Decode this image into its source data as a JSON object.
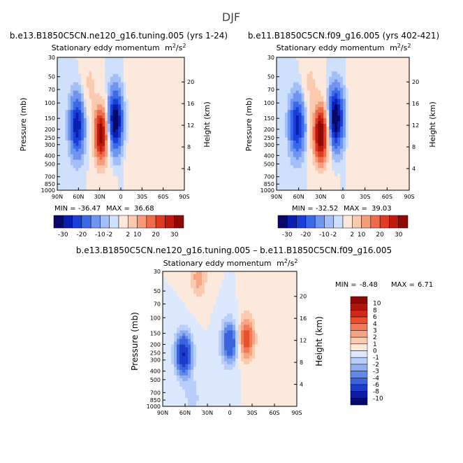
{
  "page_title": "DJF",
  "chart_data": [
    {
      "type": "heatmap",
      "title": "b.e13.B1850C5CN.ne120_g16.tuning.005 (yrs 1-24)",
      "subtitle": "Stationary eddy momentum",
      "units_base": "m",
      "units_sup1": "2",
      "units_mid": "/s",
      "units_sup2": "2",
      "ylabel": "Pressure (mb)",
      "ylabel_right": "Height (km)",
      "x_ticks": [
        "90N",
        "60N",
        "30N",
        "0",
        "30S",
        "60S",
        "90S"
      ],
      "y_ticks": [
        "30",
        "50",
        "70",
        "100",
        "150",
        "200",
        "250",
        "300",
        "400",
        "500",
        "700",
        "850",
        "1000"
      ],
      "y_right_ticks": [
        "20",
        "16",
        "12",
        "8",
        "4"
      ],
      "ylim": [
        1000,
        30
      ],
      "xlim": [
        "90N",
        "90S"
      ],
      "min_label": "MIN =",
      "min_value": "-36.47",
      "max_label": "MAX =",
      "max_value": "36.68",
      "color_levels": [
        "-30",
        "-20",
        "-10",
        "-2",
        "2",
        "10",
        "20",
        "30"
      ],
      "features": [
        {
          "lat": 62,
          "p": 180,
          "value": -24
        },
        {
          "lat": 28,
          "p": 230,
          "value": 34
        },
        {
          "lat": 8,
          "p": 160,
          "value": -30
        },
        {
          "lat": 44,
          "p": 60,
          "value": 6
        },
        {
          "lat": -42,
          "p": 320,
          "value": 1
        }
      ]
    },
    {
      "type": "heatmap",
      "title": "b.e11.B1850C5CN.f09_g16.005 (yrs 402-421)",
      "subtitle": "Stationary eddy momentum",
      "units_base": "m",
      "units_sup1": "2",
      "units_mid": "/s",
      "units_sup2": "2",
      "ylabel": "Pressure (mb)",
      "ylabel_right": "Height (km)",
      "x_ticks": [
        "90N",
        "60N",
        "30N",
        "0",
        "30S",
        "60S",
        "90S"
      ],
      "y_ticks": [
        "30",
        "50",
        "70",
        "100",
        "150",
        "200",
        "250",
        "300",
        "400",
        "500",
        "700",
        "850",
        "1000"
      ],
      "y_right_ticks": [
        "20",
        "16",
        "12",
        "8",
        "4"
      ],
      "ylim": [
        1000,
        30
      ],
      "xlim": [
        "90N",
        "90S"
      ],
      "min_label": "MIN =",
      "min_value": "-32.52",
      "max_label": "MAX =",
      "max_value": "39.03",
      "color_levels": [
        "-30",
        "-20",
        "-10",
        "-2",
        "2",
        "10",
        "20",
        "30"
      ],
      "features": [
        {
          "lat": 62,
          "p": 180,
          "value": -22
        },
        {
          "lat": 30,
          "p": 230,
          "value": 38
        },
        {
          "lat": 10,
          "p": 150,
          "value": -31
        },
        {
          "lat": 44,
          "p": 60,
          "value": 6
        },
        {
          "lat": -40,
          "p": 320,
          "value": 1
        }
      ]
    },
    {
      "type": "heatmap",
      "title": "b.e13.B1850C5CN.ne120_g16.tuning.005 – b.e11.B1850C5CN.f09_g16.005",
      "subtitle": "Stationary eddy momentum",
      "units_base": "m",
      "units_sup1": "2",
      "units_mid": "/s",
      "units_sup2": "2",
      "ylabel": "Pressure (mb)",
      "ylabel_right": "Height (km)",
      "x_ticks": [
        "90N",
        "60N",
        "30N",
        "0",
        "30S",
        "60S",
        "90S"
      ],
      "y_ticks": [
        "30",
        "50",
        "70",
        "100",
        "150",
        "200",
        "250",
        "300",
        "400",
        "500",
        "700",
        "850",
        "1000"
      ],
      "y_right_ticks": [
        "20",
        "16",
        "12",
        "8",
        "4"
      ],
      "ylim": [
        1000,
        30
      ],
      "xlim": [
        "90N",
        "90S"
      ],
      "min_label": "MIN =",
      "min_value": "-8.48",
      "max_label": "MAX =",
      "max_value": "6.71",
      "color_levels": [
        "10",
        "8",
        "6",
        "4",
        "3",
        "2",
        "1",
        "0",
        "-1",
        "-2",
        "-3",
        "-4",
        "-6",
        "-8",
        "-10"
      ],
      "features": [
        {
          "lat": 62,
          "p": 260,
          "value": -8
        },
        {
          "lat": 0,
          "p": 190,
          "value": -6
        },
        {
          "lat": -22,
          "p": 170,
          "value": 5
        },
        {
          "lat": 42,
          "p": 35,
          "value": 2.5
        },
        {
          "lat": 50,
          "p": 800,
          "value": -1.5
        },
        {
          "lat": -55,
          "p": 500,
          "value": 0.8
        }
      ]
    }
  ],
  "colors": {
    "palette_top": [
      "#08086b",
      "#0a1fb0",
      "#1a3fd8",
      "#3b6ae8",
      "#6f95f0",
      "#a3bff7",
      "#cfe0fc",
      "#fde9dc",
      "#fbc9ad",
      "#f69c7a",
      "#ee6b4b",
      "#df3b23",
      "#c01a0e",
      "#8d0a06"
    ],
    "palette_diff": [
      "#8d0a06",
      "#b0150b",
      "#cf2a17",
      "#e84f2e",
      "#f27a55",
      "#f7a485",
      "#fbc9ad",
      "#fde9dc",
      "#dbe8fd",
      "#b7cffa",
      "#8eaff3",
      "#6189ea",
      "#3c63df",
      "#1c3cc9",
      "#0b1ea3",
      "#060a6c"
    ]
  }
}
